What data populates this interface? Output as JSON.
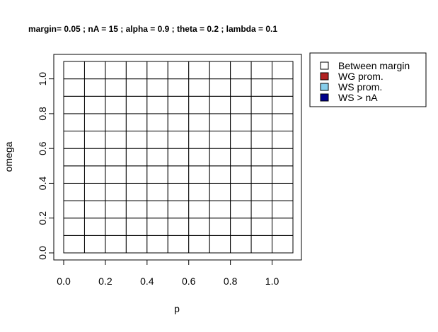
{
  "chart_data": {
    "type": "heatmap",
    "title": "margin= 0.05 ; nA = 15 ; alpha = 0.9 ; theta = 0.2 ; lambda = 0.1",
    "xlabel": "p",
    "ylabel": "omega",
    "xlim": [
      0.0,
      1.1
    ],
    "ylim": [
      0.0,
      1.1
    ],
    "x_ticks": [
      "0.0",
      "0.2",
      "0.4",
      "0.6",
      "0.8",
      "1.0"
    ],
    "y_ticks": [
      "0.0",
      "0.2",
      "0.4",
      "0.6",
      "0.8",
      "1.0"
    ],
    "x_breaks": [
      0.0,
      0.1,
      0.2,
      0.3,
      0.4,
      0.5,
      0.6,
      0.7,
      0.8,
      0.9,
      1.0,
      1.1
    ],
    "y_breaks": [
      0.0,
      0.1,
      0.2,
      0.3,
      0.4,
      0.5,
      0.6,
      0.7,
      0.8,
      0.9,
      1.0,
      1.1
    ],
    "cell_fill": "#ffffff",
    "grid": true,
    "legend": {
      "position": "outside-top-right",
      "entries": [
        {
          "label": "Between margin",
          "color": "#ffffff"
        },
        {
          "label": "WG prom.",
          "color": "#b22222"
        },
        {
          "label": "WS prom.",
          "color": "#87ceeb"
        },
        {
          "label": "WS > nA",
          "color": "#00008b"
        }
      ]
    }
  }
}
